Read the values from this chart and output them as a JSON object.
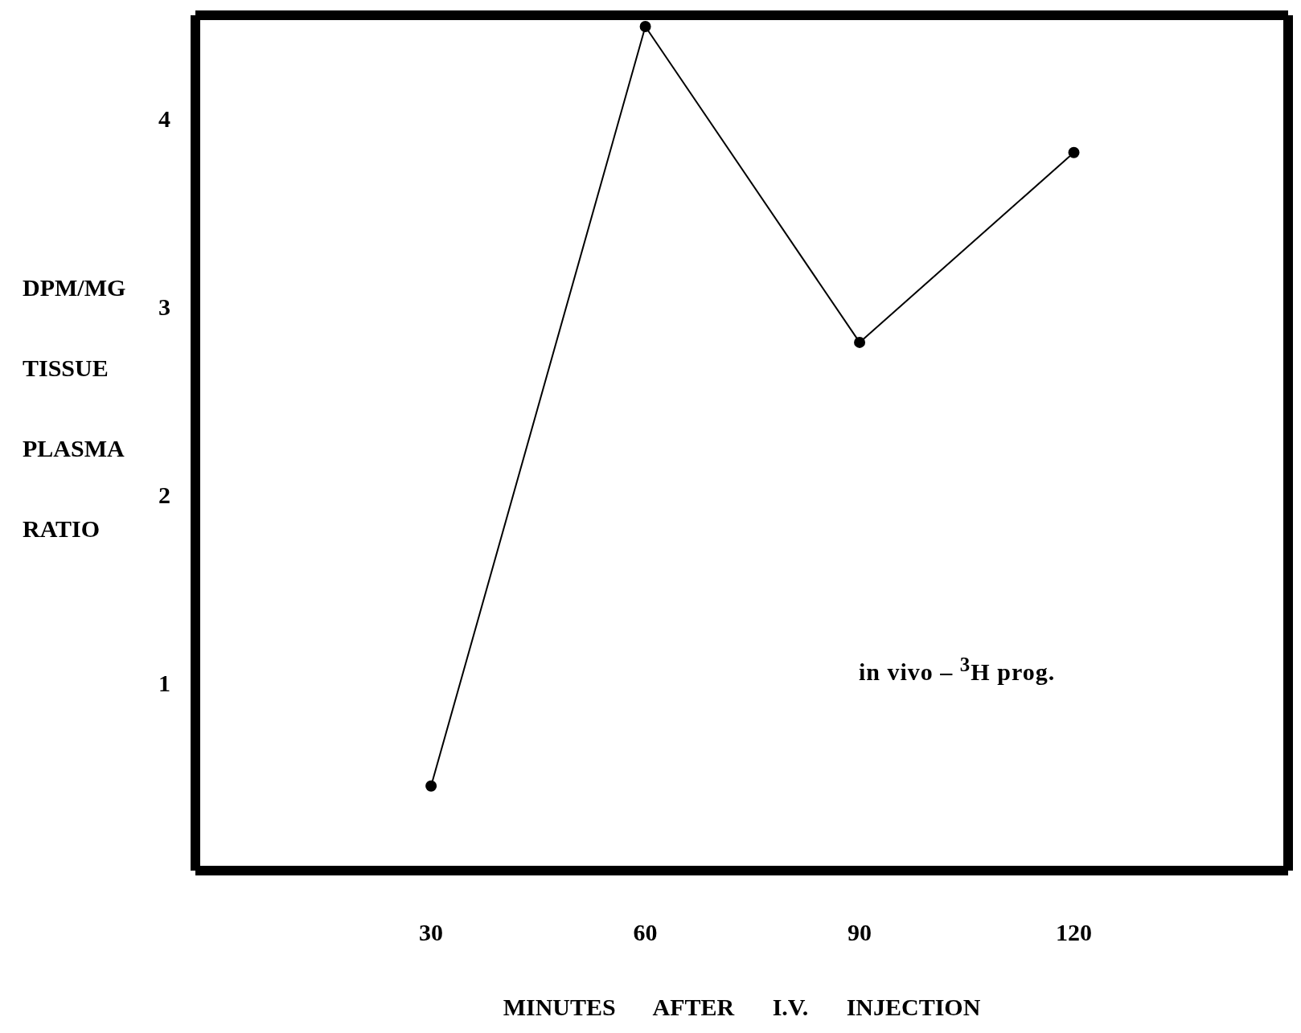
{
  "chart_data": {
    "type": "line",
    "x": [
      30,
      60,
      90,
      120
    ],
    "series": [
      {
        "color": "#000000",
        "values": [
          0.45,
          4.49,
          2.81,
          3.82
        ]
      }
    ],
    "xlim": [
      -3,
      150
    ],
    "xticks": [
      30,
      60,
      90,
      120
    ],
    "ylim": [
      0,
      4.55
    ],
    "yticks": [
      1,
      2,
      3,
      4
    ],
    "xlabel": "MINUTES AFTER I.V. INJECTION",
    "ylabel": "DPM/MG TISSUE PLASMA RATIO",
    "annotations": [
      "in vivo – $^{3}$H prog."
    ],
    "marker": "circle",
    "line_style": "solid",
    "grid": false,
    "legend": false
  }
}
